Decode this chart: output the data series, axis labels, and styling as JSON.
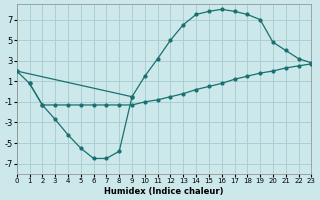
{
  "xlabel": "Humidex (Indice chaleur)",
  "bg_color": "#cce8ea",
  "grid_color": "#aacfd2",
  "line_color": "#1a7070",
  "xlim": [
    0,
    23
  ],
  "ylim": [
    -8,
    8.5
  ],
  "yticks": [
    -7,
    -5,
    -3,
    -1,
    1,
    3,
    5,
    7
  ],
  "xticks": [
    0,
    1,
    2,
    3,
    4,
    5,
    6,
    7,
    8,
    9,
    10,
    11,
    12,
    13,
    14,
    15,
    16,
    17,
    18,
    19,
    20,
    21,
    22,
    23
  ],
  "curveA_x": [
    0,
    1,
    2,
    3,
    4,
    5,
    6,
    7,
    8,
    9,
    10,
    11,
    12,
    13,
    14,
    15,
    16,
    17,
    18,
    19,
    20,
    21,
    22,
    23
  ],
  "curveA_y": [
    2.0,
    0.8,
    -1.3,
    -1.3,
    -1.3,
    -1.3,
    -1.3,
    -1.3,
    -1.3,
    -1.3,
    -1.0,
    -0.8,
    -0.5,
    -0.2,
    0.2,
    0.5,
    0.8,
    1.2,
    1.5,
    1.8,
    2.0,
    2.3,
    2.5,
    2.7
  ],
  "curveB_x": [
    1,
    2,
    3,
    4,
    5,
    6,
    7,
    8,
    9
  ],
  "curveB_y": [
    0.8,
    -1.3,
    -2.7,
    -4.2,
    -5.5,
    -6.5,
    -6.5,
    -5.8,
    -0.5
  ],
  "curveC_x": [
    0,
    9,
    10,
    11,
    12,
    13,
    14,
    15,
    16,
    17,
    18,
    19,
    20,
    21,
    22,
    23
  ],
  "curveC_y": [
    2.0,
    -0.5,
    1.5,
    3.2,
    5.0,
    6.5,
    7.5,
    7.8,
    8.0,
    7.8,
    7.5,
    7.0,
    4.8,
    4.0,
    3.2,
    2.8
  ]
}
